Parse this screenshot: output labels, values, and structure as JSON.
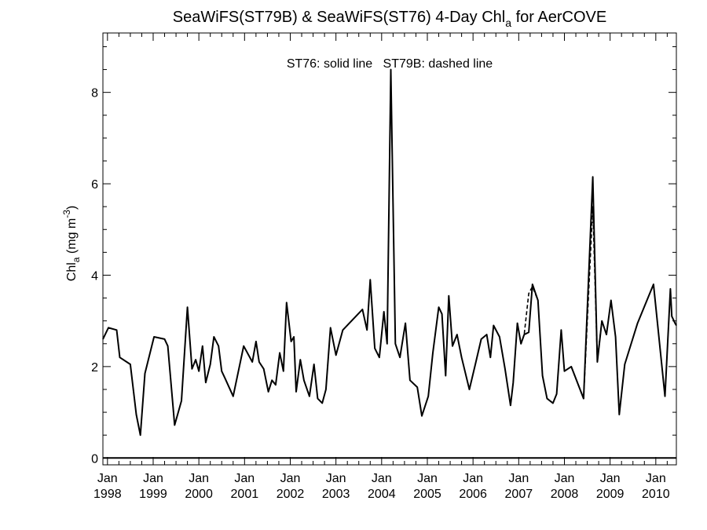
{
  "chart_data": {
    "type": "line",
    "title": {
      "prefix": "SeaWiFS(ST79B) & SeaWiFS(ST76) 4-Day Chl",
      "subscript": "a",
      "suffix": " for AerCOVE"
    },
    "ylabel": {
      "main": "Chl",
      "subscript": "a",
      "units_prefix": " (mg m",
      "superscript": "-3",
      "units_suffix": ")"
    },
    "annotation": "ST76: solid line   ST79B: dashed line",
    "xlim": [
      1997.9,
      2010.45
    ],
    "ylim": [
      -0.15,
      9.3
    ],
    "yticks": [
      0,
      2,
      4,
      6,
      8
    ],
    "ytick_labels": [
      "0",
      "2",
      "4",
      "6",
      "8"
    ],
    "xticks": [
      1998,
      1999,
      2000,
      2001,
      2002,
      2003,
      2004,
      2005,
      2006,
      2007,
      2008,
      2009,
      2010
    ],
    "xtick_month": "Jan",
    "xtick_years": [
      "1998",
      "1999",
      "2000",
      "2001",
      "2002",
      "2003",
      "2004",
      "2005",
      "2006",
      "2007",
      "2008",
      "2009",
      "2010"
    ],
    "zero_line": 0,
    "series": [
      {
        "name": "ST76",
        "style": "solid",
        "color": "#000000",
        "x": [
          1997.9,
          1998.02,
          1998.2,
          1998.27,
          1998.5,
          1998.63,
          1998.72,
          1998.82,
          1999.02,
          1999.25,
          1999.32,
          1999.47,
          1999.62,
          1999.75,
          1999.85,
          1999.93,
          2000.0,
          2000.08,
          2000.15,
          2000.25,
          2000.33,
          2000.43,
          2000.5,
          2000.57,
          2000.75,
          2000.98,
          2001.17,
          2001.25,
          2001.32,
          2001.42,
          2001.52,
          2001.6,
          2001.68,
          2001.77,
          2001.85,
          2001.92,
          2002.02,
          2002.08,
          2002.13,
          2002.22,
          2002.3,
          2002.42,
          2002.52,
          2002.6,
          2002.7,
          2002.78,
          2002.88,
          2003.0,
          2003.15,
          2003.58,
          2003.68,
          2003.75,
          2003.85,
          2003.95,
          2004.05,
          2004.12,
          2004.2,
          2004.3,
          2004.4,
          2004.52,
          2004.62,
          2004.78,
          2004.88,
          2005.02,
          2005.12,
          2005.25,
          2005.32,
          2005.4,
          2005.47,
          2005.55,
          2005.65,
          2005.75,
          2005.92,
          2006.05,
          2006.18,
          2006.3,
          2006.38,
          2006.45,
          2006.58,
          2006.7,
          2006.82,
          2006.88,
          2006.97,
          2007.05,
          2007.12,
          2007.22,
          2007.3,
          2007.42,
          2007.52,
          2007.62,
          2007.75,
          2007.83,
          2007.93,
          2008.0,
          2008.15,
          2008.42,
          2008.62,
          2008.72,
          2008.82,
          2008.92,
          2009.02,
          2009.12,
          2009.2,
          2009.32,
          2009.6,
          2009.95,
          2010.2,
          2010.32,
          2010.35,
          2010.42,
          2010.45
        ],
        "y": [
          2.6,
          2.85,
          2.8,
          2.2,
          2.05,
          0.95,
          0.5,
          1.85,
          2.65,
          2.6,
          2.45,
          0.72,
          1.25,
          3.3,
          1.95,
          2.15,
          1.9,
          2.45,
          1.65,
          2.05,
          2.65,
          2.45,
          1.9,
          1.75,
          1.35,
          2.45,
          2.1,
          2.55,
          2.1,
          1.95,
          1.45,
          1.7,
          1.6,
          2.3,
          1.9,
          3.4,
          2.55,
          2.65,
          1.45,
          2.15,
          1.7,
          1.35,
          2.05,
          1.3,
          1.2,
          1.5,
          2.85,
          2.25,
          2.8,
          3.25,
          2.8,
          3.9,
          2.4,
          2.2,
          3.2,
          2.5,
          8.5,
          2.5,
          2.2,
          2.95,
          1.7,
          1.55,
          0.92,
          1.35,
          2.3,
          3.3,
          3.15,
          1.8,
          3.55,
          2.45,
          2.7,
          2.2,
          1.5,
          2.05,
          2.6,
          2.7,
          2.2,
          2.9,
          2.65,
          1.95,
          1.15,
          1.65,
          2.95,
          2.5,
          2.7,
          2.75,
          3.8,
          3.45,
          1.8,
          1.3,
          1.2,
          1.4,
          2.8,
          1.9,
          2.0,
          1.3,
          6.15,
          2.1,
          3.0,
          2.7,
          3.45,
          2.65,
          0.95,
          2.05,
          2.95,
          3.8,
          1.35,
          3.7,
          3.1,
          2.95,
          2.9
        ]
      },
      {
        "name": "ST79B",
        "style": "dashed",
        "color": "#000000",
        "x": [
          2006.97,
          2007.05,
          2007.12,
          2007.22,
          2007.3,
          2007.42
        ],
        "y": [
          2.95,
          2.5,
          2.7,
          3.6,
          3.75,
          3.45
        ]
      },
      {
        "name": "ST79B",
        "style": "dashed",
        "color": "#000000",
        "x": [
          2008.15,
          2008.42,
          2008.62,
          2008.72,
          2008.82
        ],
        "y": [
          2.0,
          1.3,
          5.5,
          2.15,
          3.0
        ]
      }
    ]
  }
}
